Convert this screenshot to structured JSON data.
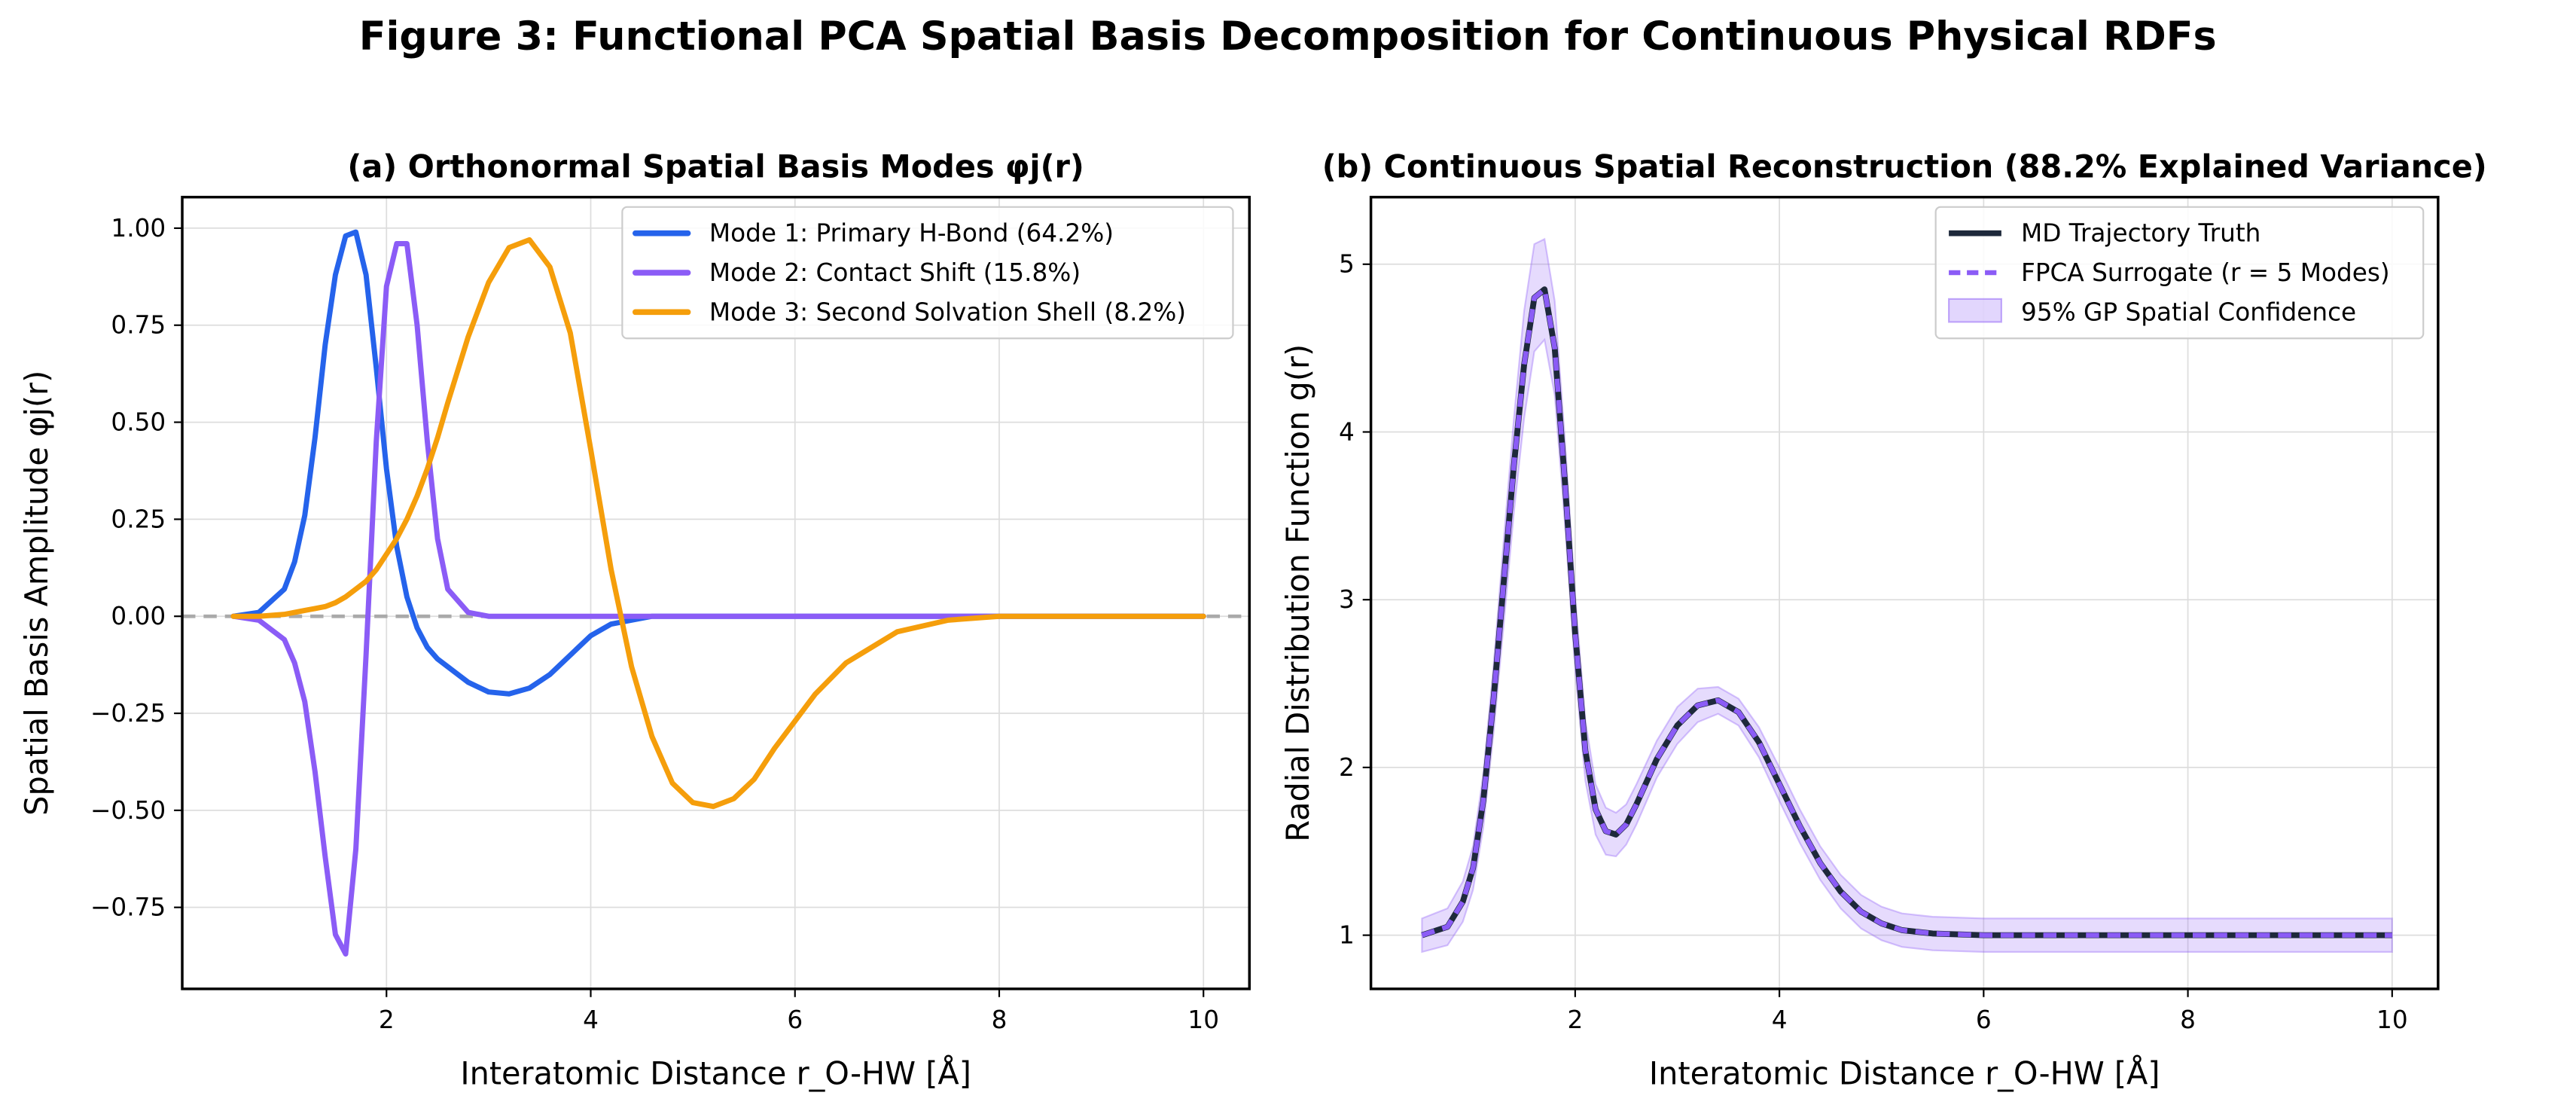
{
  "figure_title": "Figure 3: Functional PCA Spatial Basis Decomposition for Continuous Physical RDFs",
  "colors": {
    "mode1": "#2563eb",
    "mode2": "#8b5cf6",
    "mode3": "#f59e0b",
    "truth": "#1e293b",
    "surrogate": "#8b5cf6",
    "band": "#8b5cf6",
    "zero_line": "#aaaaaa",
    "grid": "#dddddd"
  },
  "chart_data": [
    {
      "type": "line",
      "title": "(a) Orthonormal Spatial Basis Modes φj(r)",
      "xlabel": "Interatomic Distance r_O-HW [Å]",
      "ylabel": "Spatial Basis Amplitude φj(r)",
      "xlim": [
        0.0,
        10.45
      ],
      "ylim": [
        -0.96,
        1.08
      ],
      "xticks": [
        2,
        4,
        6,
        8,
        10
      ],
      "yticks": [
        -0.75,
        -0.5,
        -0.25,
        0.0,
        0.25,
        0.5,
        0.75,
        1.0
      ],
      "ytick_labels": [
        "−0.75",
        "−0.50",
        "−0.25",
        "0.00",
        "0.25",
        "0.50",
        "0.75",
        "1.00"
      ],
      "grid": true,
      "legend_position": "top-right",
      "x": [
        0.5,
        0.75,
        1.0,
        1.1,
        1.2,
        1.3,
        1.4,
        1.5,
        1.6,
        1.7,
        1.8,
        1.9,
        2.0,
        2.1,
        2.2,
        2.3,
        2.4,
        2.5,
        2.6,
        2.8,
        3.0,
        3.2,
        3.4,
        3.6,
        3.8,
        4.0,
        4.2,
        4.4,
        4.6,
        4.8,
        5.0,
        5.2,
        5.4,
        5.6,
        5.8,
        6.0,
        6.2,
        6.5,
        7.0,
        7.5,
        8.0,
        8.5,
        9.0,
        10.0
      ],
      "series": [
        {
          "name": "Mode 1: Primary H-Bond (64.2%)",
          "values": [
            0.0,
            0.01,
            0.07,
            0.14,
            0.26,
            0.46,
            0.7,
            0.88,
            0.98,
            0.99,
            0.88,
            0.64,
            0.38,
            0.18,
            0.05,
            -0.03,
            -0.08,
            -0.11,
            -0.13,
            -0.17,
            -0.195,
            -0.2,
            -0.185,
            -0.15,
            -0.1,
            -0.05,
            -0.02,
            -0.01,
            0.0,
            0.0,
            0.0,
            0.0,
            0.0,
            0.0,
            0.0,
            0.0,
            0.0,
            0.0,
            0.0,
            0.0,
            0.0,
            0.0,
            0.0,
            0.0
          ]
        },
        {
          "name": "Mode 2: Contact Shift (15.8%)",
          "values": [
            0.0,
            -0.01,
            -0.06,
            -0.12,
            -0.22,
            -0.4,
            -0.62,
            -0.82,
            -0.87,
            -0.6,
            -0.1,
            0.45,
            0.85,
            0.96,
            0.96,
            0.75,
            0.45,
            0.2,
            0.07,
            0.01,
            0.0,
            0.0,
            0.0,
            0.0,
            0.0,
            0.0,
            0.0,
            0.0,
            0.0,
            0.0,
            0.0,
            0.0,
            0.0,
            0.0,
            0.0,
            0.0,
            0.0,
            0.0,
            0.0,
            0.0,
            0.0,
            0.0,
            0.0,
            0.0
          ]
        },
        {
          "name": "Mode 3: Second Solvation Shell (8.2%)",
          "values": [
            0.0,
            0.0,
            0.005,
            0.01,
            0.015,
            0.02,
            0.025,
            0.035,
            0.05,
            0.07,
            0.09,
            0.12,
            0.16,
            0.2,
            0.25,
            0.31,
            0.38,
            0.46,
            0.55,
            0.72,
            0.86,
            0.95,
            0.97,
            0.9,
            0.73,
            0.43,
            0.12,
            -0.13,
            -0.31,
            -0.43,
            -0.48,
            -0.49,
            -0.47,
            -0.42,
            -0.34,
            -0.27,
            -0.2,
            -0.12,
            -0.04,
            -0.01,
            0.0,
            0.0,
            0.0,
            0.0
          ]
        }
      ],
      "reference_line": {
        "y": 0.0,
        "style": "dashed"
      }
    },
    {
      "type": "line",
      "title": "(b) Continuous Spatial Reconstruction (88.2% Explained Variance)",
      "xlabel": "Interatomic Distance r_O-HW [Å]",
      "ylabel": "Radial Distribution Function g(r)",
      "xlim": [
        0.0,
        10.45
      ],
      "ylim": [
        0.68,
        5.4
      ],
      "xticks": [
        2,
        4,
        6,
        8,
        10
      ],
      "yticks": [
        1,
        2,
        3,
        4,
        5
      ],
      "grid": true,
      "legend_position": "top-right",
      "x": [
        0.5,
        0.75,
        0.9,
        1.0,
        1.1,
        1.2,
        1.3,
        1.4,
        1.5,
        1.6,
        1.7,
        1.8,
        1.9,
        2.0,
        2.1,
        2.2,
        2.3,
        2.4,
        2.5,
        2.6,
        2.8,
        3.0,
        3.2,
        3.4,
        3.6,
        3.8,
        4.0,
        4.2,
        4.4,
        4.6,
        4.8,
        5.0,
        5.2,
        5.5,
        6.0,
        7.0,
        8.0,
        9.0,
        10.0
      ],
      "series": [
        {
          "name": "MD Trajectory Truth",
          "values": [
            1.0,
            1.05,
            1.2,
            1.4,
            1.8,
            2.4,
            3.1,
            3.8,
            4.4,
            4.8,
            4.85,
            4.5,
            3.7,
            2.8,
            2.1,
            1.75,
            1.62,
            1.6,
            1.66,
            1.78,
            2.05,
            2.25,
            2.37,
            2.4,
            2.33,
            2.15,
            1.9,
            1.65,
            1.43,
            1.26,
            1.14,
            1.07,
            1.03,
            1.01,
            1.0,
            1.0,
            1.0,
            1.0,
            1.0
          ]
        },
        {
          "name": "FPCA Surrogate (r = 5 Modes)",
          "values": [
            1.0,
            1.05,
            1.2,
            1.4,
            1.8,
            2.4,
            3.1,
            3.8,
            4.4,
            4.8,
            4.85,
            4.5,
            3.7,
            2.8,
            2.1,
            1.75,
            1.62,
            1.6,
            1.66,
            1.78,
            2.05,
            2.25,
            2.37,
            2.4,
            2.33,
            2.15,
            1.9,
            1.65,
            1.43,
            1.26,
            1.14,
            1.07,
            1.03,
            1.01,
            1.0,
            1.0,
            1.0,
            1.0,
            1.0
          ]
        }
      ],
      "band": {
        "name": "95% GP Spatial Confidence",
        "upper": [
          1.1,
          1.16,
          1.32,
          1.53,
          1.96,
          2.6,
          3.35,
          4.08,
          4.72,
          5.12,
          5.15,
          4.78,
          3.95,
          3.02,
          2.28,
          1.9,
          1.76,
          1.73,
          1.78,
          1.9,
          2.16,
          2.36,
          2.47,
          2.48,
          2.41,
          2.24,
          2.0,
          1.75,
          1.53,
          1.36,
          1.24,
          1.17,
          1.13,
          1.11,
          1.1,
          1.1,
          1.1,
          1.1,
          1.1
        ],
        "lower": [
          0.9,
          0.94,
          1.08,
          1.27,
          1.64,
          2.2,
          2.85,
          3.52,
          4.08,
          4.48,
          4.55,
          4.22,
          3.45,
          2.58,
          1.92,
          1.6,
          1.48,
          1.47,
          1.54,
          1.66,
          1.94,
          2.14,
          2.27,
          2.32,
          2.25,
          2.06,
          1.8,
          1.55,
          1.33,
          1.16,
          1.04,
          0.97,
          0.93,
          0.91,
          0.9,
          0.9,
          0.9,
          0.9,
          0.9
        ]
      }
    }
  ]
}
